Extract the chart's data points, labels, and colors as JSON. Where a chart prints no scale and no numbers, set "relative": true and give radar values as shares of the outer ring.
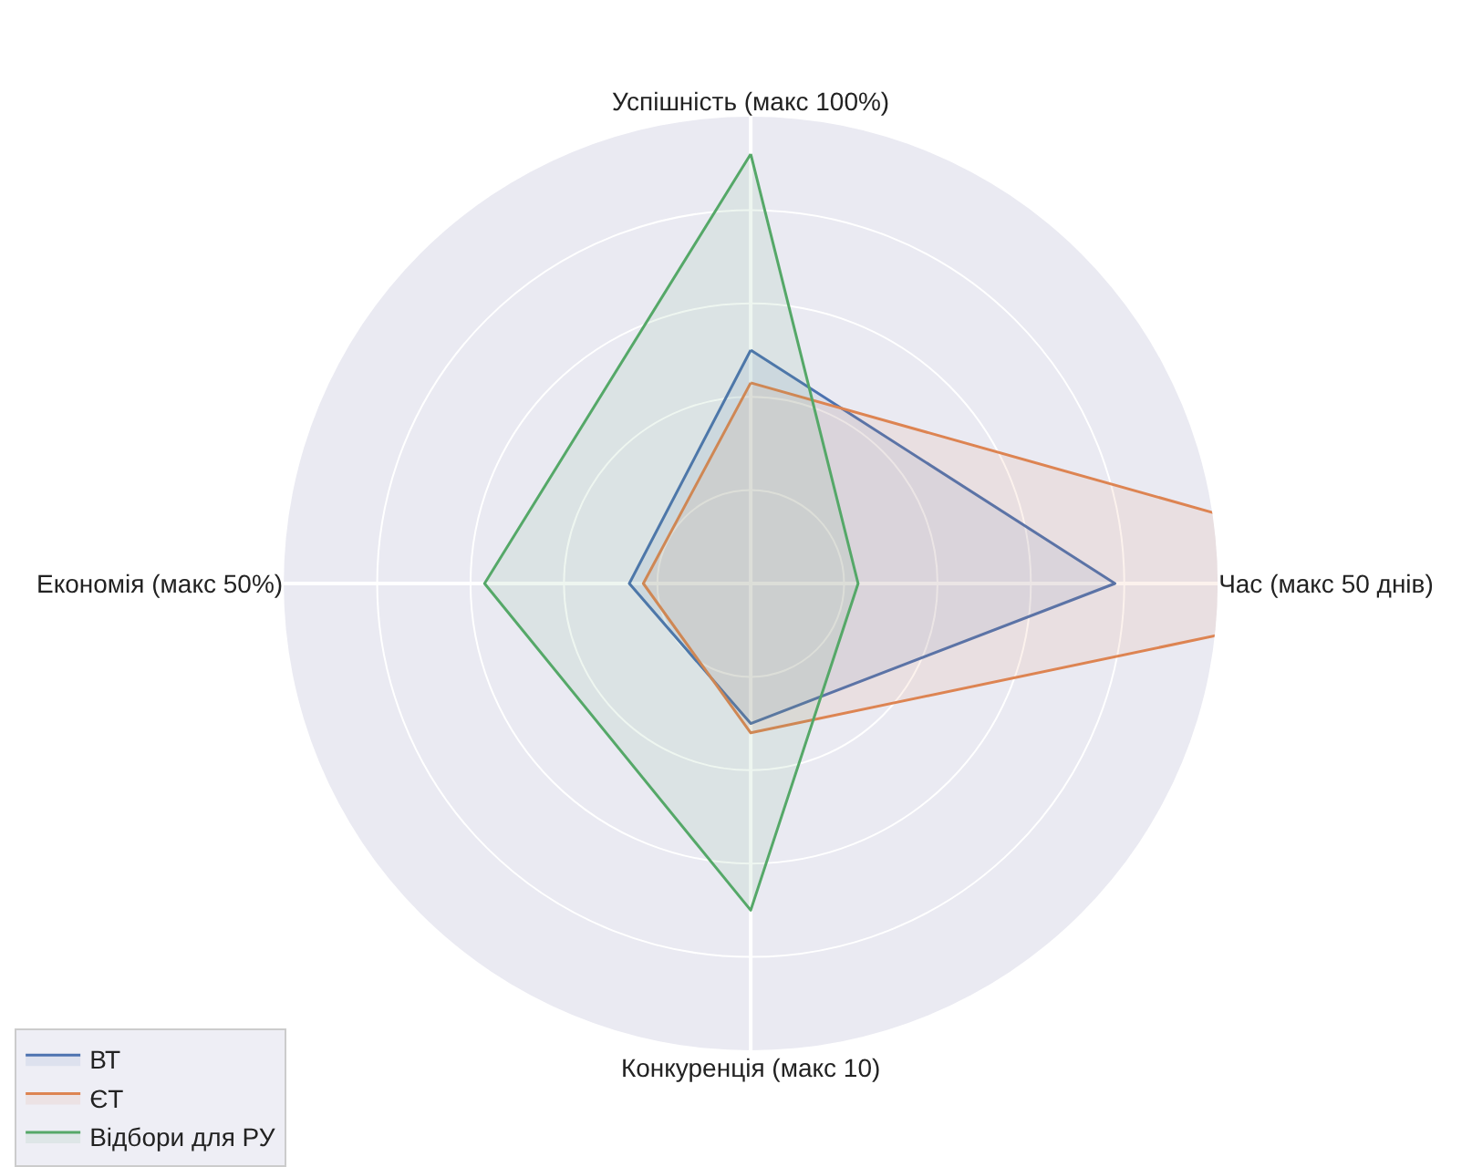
{
  "chart_data": {
    "type": "radar",
    "relative": true,
    "categories": [
      "Успішність (макс 100%)",
      "Час (макс 50 днів)",
      "Конкуренція (макс 10)",
      "Економія (макс 50%)"
    ],
    "series": [
      {
        "name": "ВТ",
        "color": "#4c72b0",
        "values": [
          0.5,
          0.78,
          0.3,
          0.26
        ]
      },
      {
        "name": "ЄТ",
        "color": "#dd8452",
        "values": [
          0.43,
          1.53,
          0.32,
          0.23
        ]
      },
      {
        "name": "Відбори для РУ",
        "color": "#55a868",
        "values": [
          0.92,
          0.23,
          0.7,
          0.57
        ]
      }
    ],
    "grid": true,
    "legend": "bottom left",
    "marker": "none",
    "line_style": "solid"
  }
}
